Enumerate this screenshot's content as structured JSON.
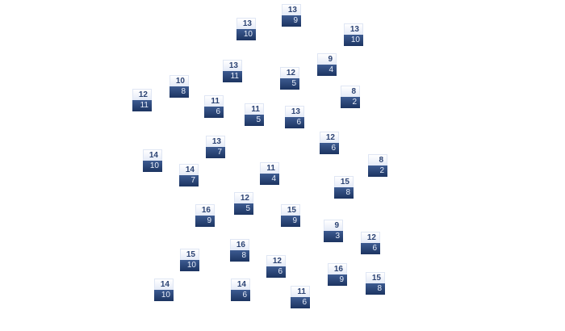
{
  "nodes": [
    {
      "top": "13",
      "bottom": "9"
    },
    {
      "top": "13",
      "bottom": "10"
    },
    {
      "top": "13",
      "bottom": "10"
    },
    {
      "top": "13",
      "bottom": "11"
    },
    {
      "top": "9",
      "bottom": "4"
    },
    {
      "top": "12",
      "bottom": "5"
    },
    {
      "top": "10",
      "bottom": "8"
    },
    {
      "top": "8",
      "bottom": "2"
    },
    {
      "top": "12",
      "bottom": "11"
    },
    {
      "top": "11",
      "bottom": "6"
    },
    {
      "top": "11",
      "bottom": "5"
    },
    {
      "top": "13",
      "bottom": "6"
    },
    {
      "top": "12",
      "bottom": "6"
    },
    {
      "top": "13",
      "bottom": "7"
    },
    {
      "top": "14",
      "bottom": "10"
    },
    {
      "top": "8",
      "bottom": "2"
    },
    {
      "top": "14",
      "bottom": "7"
    },
    {
      "top": "11",
      "bottom": "4"
    },
    {
      "top": "15",
      "bottom": "8"
    },
    {
      "top": "12",
      "bottom": "5"
    },
    {
      "top": "16",
      "bottom": "9"
    },
    {
      "top": "15",
      "bottom": "9"
    },
    {
      "top": "9",
      "bottom": "3"
    },
    {
      "top": "12",
      "bottom": "6"
    },
    {
      "top": "16",
      "bottom": "8"
    },
    {
      "top": "15",
      "bottom": "10"
    },
    {
      "top": "12",
      "bottom": "6"
    },
    {
      "top": "16",
      "bottom": "9"
    },
    {
      "top": "15",
      "bottom": "8"
    },
    {
      "top": "14",
      "bottom": "10"
    },
    {
      "top": "14",
      "bottom": "6"
    },
    {
      "top": "11",
      "bottom": "6"
    }
  ],
  "colors": {
    "header_text": "#2c4373",
    "body_top": "#3d5b91",
    "body_bottom": "#1c3461"
  }
}
